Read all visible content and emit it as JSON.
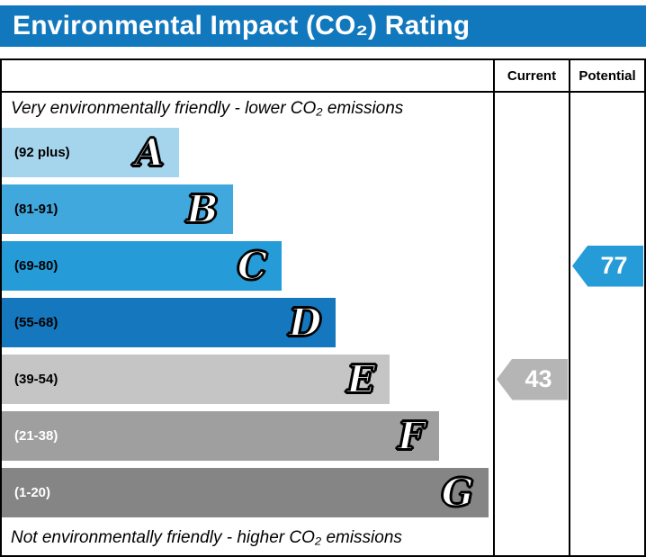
{
  "title": "Environmental Impact (CO₂) Rating",
  "columns": {
    "current": "Current",
    "potential": "Potential"
  },
  "captions": {
    "top": "Very environmentally friendly - lower CO₂ emissions",
    "bottom": "Not environmentally friendly - higher CO₂ emissions"
  },
  "bands": [
    {
      "letter": "A",
      "range": "(92 plus)",
      "color": "#a5d5ec",
      "label_color": "#000000",
      "width_pct": 36
    },
    {
      "letter": "B",
      "range": "(81-91)",
      "color": "#41a8dd",
      "label_color": "#000000",
      "width_pct": 47
    },
    {
      "letter": "C",
      "range": "(69-80)",
      "color": "#259bd7",
      "label_color": "#000000",
      "width_pct": 57
    },
    {
      "letter": "D",
      "range": "(55-68)",
      "color": "#1577bd",
      "label_color": "#000000",
      "width_pct": 68
    },
    {
      "letter": "E",
      "range": "(39-54)",
      "color": "#c5c5c5",
      "label_color": "#000000",
      "width_pct": 79
    },
    {
      "letter": "F",
      "range": "(21-38)",
      "color": "#9f9f9f",
      "label_color": "#ffffff",
      "width_pct": 89
    },
    {
      "letter": "G",
      "range": "(1-20)",
      "color": "#858585",
      "label_color": "#ffffff",
      "width_pct": 99
    }
  ],
  "current": {
    "value": "43",
    "band": "E",
    "color": "#b5b5b5"
  },
  "potential": {
    "value": "77",
    "band": "C",
    "color": "#259bd7"
  },
  "theme": {
    "title_bg": "#1278be",
    "border": "#000000"
  },
  "chart_data": {
    "type": "bar",
    "title": "Environmental Impact (CO₂) Rating",
    "categories": [
      "A",
      "B",
      "C",
      "D",
      "E",
      "F",
      "G"
    ],
    "ranges": [
      "92 plus",
      "81-91",
      "69-80",
      "55-68",
      "39-54",
      "21-38",
      "1-20"
    ],
    "values": [
      36,
      47,
      57,
      68,
      79,
      89,
      99
    ],
    "value_unit": "relative bar width %",
    "current": 43,
    "current_band": "E",
    "potential": 77,
    "potential_band": "C",
    "top_annotation": "Very environmentally friendly - lower CO₂ emissions",
    "bottom_annotation": "Not environmentally friendly - higher CO₂ emissions",
    "legend_position": "none",
    "grid": false
  }
}
